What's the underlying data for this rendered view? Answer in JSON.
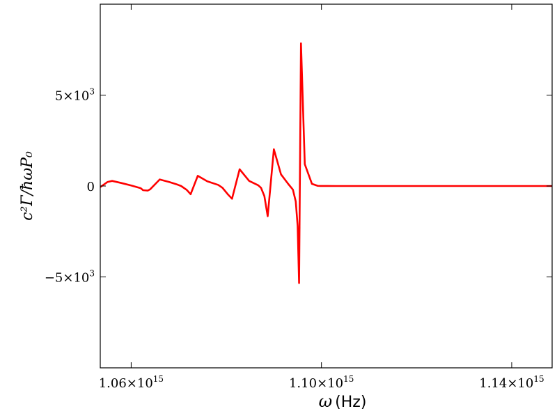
{
  "chart_data": {
    "type": "line",
    "xlabel": {
      "symbol": "ω",
      "unit": "(Hz)"
    },
    "ylabel": "c²Γ/ħωP₀",
    "xlim": [
      1053500000000000.0,
      1148500000000000.0
    ],
    "ylim": [
      -10000,
      10000
    ],
    "grid": false,
    "x_ticks": [
      {
        "value": 1060000000000000.0,
        "mantissa": "1.06",
        "times": "×10",
        "exp": "15"
      },
      {
        "value": 1100000000000000.0,
        "mantissa": "1.10",
        "times": "×10",
        "exp": "15"
      },
      {
        "value": 1140000000000000.0,
        "mantissa": "1.14",
        "times": "×10",
        "exp": "15"
      }
    ],
    "y_ticks": [
      {
        "value": 5000,
        "mantissa": "5",
        "times": "×10",
        "exp": "3"
      },
      {
        "value": 0,
        "mantissa": "0",
        "times": "",
        "exp": ""
      },
      {
        "value": -5000,
        "mantissa": "−5",
        "times": "×10",
        "exp": "3"
      }
    ],
    "series": [
      {
        "color": "#ff0000",
        "x": [
          1053500000000000.0,
          1055000000000000.0,
          1056000000000000.0,
          1058000000000000.0,
          1060000000000000.0,
          1062000000000000.0,
          1062500000000000.0,
          1063500000000000.0,
          1064000000000000.0,
          1066000000000000.0,
          1068000000000000.0,
          1069700000000000.0,
          1070500000000000.0,
          1071700000000000.0,
          1072500000000000.0,
          1074000000000000.0,
          1076000000000000.0,
          1078300000000000.0,
          1079200000000000.0,
          1080400000000000.0,
          1081200000000000.0,
          1082800000000000.0,
          1084800000000000.0,
          1086700000000000.0,
          1087300000000000.0,
          1088000000000000.0,
          1088700000000000.0,
          1090000000000000.0,
          1091500000000000.0,
          1093000000000000.0,
          1094000000000000.0,
          1094600000000000.0,
          1095000000000000.0,
          1095300000000000.0,
          1095700000000000.0,
          1096500000000000.0,
          1098000000000000.0,
          1099000000000000.0,
          1099200000000000.0,
          1099500000000000.0,
          1099800000000000.0,
          1100000000000000.0,
          1100300000000000.0,
          1101200000000000.0,
          1103000000000000.0,
          1104000000000000.0,
          1104500000000000.0,
          1104700000000000.0,
          1104900000000000.0,
          1105000000000000.0,
          1105200000000000.0,
          1105500000000000.0,
          1106000000000000.0,
          1108000000000000.0,
          1118000000000000.0,
          1148500000000000.0
        ],
        "y": [
          -60,
          220,
          280,
          160,
          30,
          -120,
          -230,
          -250,
          -180,
          360,
          220,
          80,
          0,
          -220,
          -450,
          560,
          260,
          60,
          -100,
          -480,
          -700,
          920,
          280,
          40,
          -100,
          -550,
          -1660,
          2020,
          640,
          120,
          -200,
          -850,
          -2200,
          -5340,
          7850,
          1200,
          120,
          30,
          10,
          5,
          3,
          2,
          1,
          1,
          0,
          0,
          0,
          0,
          0,
          0,
          0,
          0,
          0,
          0,
          0,
          0
        ]
      }
    ]
  }
}
